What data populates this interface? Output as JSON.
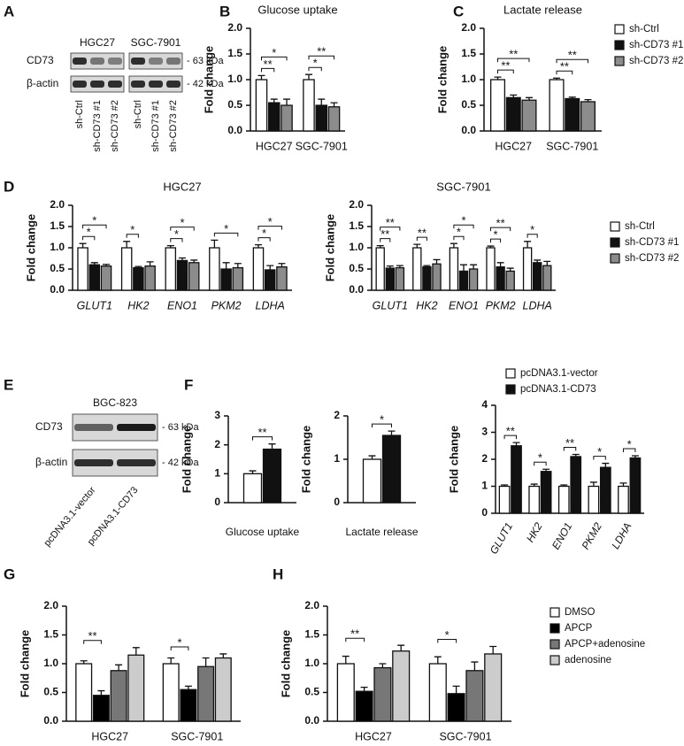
{
  "panel_labels": [
    "A",
    "B",
    "C",
    "D",
    "E",
    "F",
    "G",
    "H"
  ],
  "blots": [
    {
      "cell_lines": [
        "HGC27",
        "SGC-7901"
      ],
      "rows": [
        {
          "label": "CD73",
          "size": "- 63 kDa"
        },
        {
          "label": "β-actin",
          "size": "- 42 kDa"
        }
      ],
      "lanes": [
        "sh-Ctrl",
        "sh-CD73 #1",
        "sh-CD73 #2",
        "sh-Ctrl",
        "sh-CD73 #1",
        "sh-CD73 #2"
      ]
    },
    {
      "cell_lines": [
        "BGC-823"
      ],
      "rows": [
        {
          "label": "CD73",
          "size": "- 63 kDa"
        },
        {
          "label": "β-actin",
          "size": "- 42 kDa"
        }
      ],
      "lanes": [
        "pcDNA3.1-vector",
        "pcDNA3.1-CD73"
      ]
    }
  ],
  "chart_data": [
    {
      "type": "bar",
      "title": "Glucose uptake",
      "y_label": "Fold change",
      "categories": [
        "HGC27",
        "SGC-7901"
      ],
      "series": [
        {
          "color": "#ffffff",
          "values": [
            1.0,
            1.0
          ],
          "errors": [
            0.08,
            0.1
          ]
        },
        {
          "color": "#111111",
          "values": [
            0.55,
            0.5
          ],
          "errors": [
            0.07,
            0.12
          ]
        },
        {
          "color": "#8c8c8c",
          "values": [
            0.5,
            0.47
          ],
          "errors": [
            0.12,
            0.08
          ]
        }
      ],
      "annotations": [
        {
          "label": "**",
          "category": 0,
          "series": [
            0,
            1
          ]
        },
        {
          "label": "*",
          "category": 0,
          "series": [
            0,
            2
          ]
        },
        {
          "label": "*",
          "category": 1,
          "series": [
            0,
            1
          ]
        },
        {
          "label": "**",
          "category": 1,
          "series": [
            0,
            2
          ]
        }
      ],
      "ylim": [
        0,
        2
      ],
      "yticks": [
        {
          "value": 0,
          "label": "0.0"
        },
        0.5,
        {
          "value": 1,
          "label": "1.0"
        },
        1.5,
        {
          "value": 2,
          "label": "2.0"
        }
      ]
    },
    {
      "type": "bar",
      "title": "Lactate release",
      "y_label": "Fold change",
      "categories": [
        "HGC27",
        "SGC-7901"
      ],
      "series": [
        {
          "name": "sh-Ctrl",
          "color": "#ffffff",
          "values": [
            1.0,
            1.0
          ],
          "errors": [
            0.05,
            0.03
          ]
        },
        {
          "name": "sh-CD73 #1",
          "color": "#111111",
          "values": [
            0.65,
            0.63
          ],
          "errors": [
            0.05,
            0.03
          ]
        },
        {
          "name": "sh-CD73 #2",
          "color": "#8c8c8c",
          "values": [
            0.6,
            0.57
          ],
          "errors": [
            0.05,
            0.04
          ]
        }
      ],
      "annotations": [
        {
          "label": "**",
          "category": 0,
          "series": [
            0,
            1
          ]
        },
        {
          "label": "**",
          "category": 0,
          "series": [
            0,
            2
          ]
        },
        {
          "label": "**",
          "category": 1,
          "series": [
            0,
            1
          ]
        },
        {
          "label": "**",
          "category": 1,
          "series": [
            0,
            2
          ]
        }
      ],
      "legend": "right",
      "ylim": [
        0,
        2
      ],
      "yticks": [
        {
          "value": 0,
          "label": "0.0"
        },
        0.5,
        {
          "value": 1,
          "label": "1.0"
        },
        1.5,
        {
          "value": 2,
          "label": "2.0"
        }
      ]
    },
    {
      "type": "bar",
      "title": "HGC27",
      "y_label": "Fold change",
      "italic_categories": true,
      "categories": [
        "GLUT1",
        "HK2",
        "ENO1",
        "PKM2",
        "LDHA"
      ],
      "series": [
        {
          "color": "#ffffff",
          "values": [
            1.0,
            1.0,
            1.0,
            1.0,
            1.0
          ],
          "errors": [
            0.1,
            0.15,
            0.05,
            0.18,
            0.07
          ]
        },
        {
          "color": "#111111",
          "values": [
            0.6,
            0.53,
            0.7,
            0.5,
            0.48
          ],
          "errors": [
            0.05,
            0.03,
            0.06,
            0.15,
            0.1
          ]
        },
        {
          "color": "#8c8c8c",
          "values": [
            0.57,
            0.57,
            0.65,
            0.53,
            0.55
          ],
          "errors": [
            0.04,
            0.1,
            0.06,
            0.1,
            0.08
          ]
        }
      ],
      "annotations": [
        {
          "label": "*",
          "category": 0,
          "series": [
            0,
            1
          ]
        },
        {
          "label": "*",
          "category": 0,
          "series": [
            0,
            2
          ]
        },
        {
          "label": "*",
          "category": 1,
          "series": [
            0,
            1
          ]
        },
        {
          "label": "*",
          "category": 2,
          "series": [
            0,
            1
          ]
        },
        {
          "label": "*",
          "category": 2,
          "series": [
            0,
            2
          ]
        },
        {
          "label": "*",
          "category": 3,
          "series": [
            0,
            2
          ]
        },
        {
          "label": "*",
          "category": 4,
          "series": [
            0,
            1
          ]
        },
        {
          "label": "*",
          "category": 4,
          "series": [
            0,
            2
          ]
        }
      ],
      "ylim": [
        0,
        2
      ],
      "yticks": [
        {
          "value": 0,
          "label": "0.0"
        },
        0.5,
        {
          "value": 1,
          "label": "1.0"
        },
        1.5,
        {
          "value": 2,
          "label": "2.0"
        }
      ]
    },
    {
      "type": "bar",
      "title": "SGC-7901",
      "y_label": "Fold change",
      "italic_categories": true,
      "categories": [
        "GLUT1",
        "HK2",
        "ENO1",
        "PKM2",
        "LDHA"
      ],
      "series": [
        {
          "name": "sh-Ctrl",
          "color": "#ffffff",
          "values": [
            1.0,
            1.0,
            1.0,
            1.0,
            1.0
          ],
          "errors": [
            0.05,
            0.08,
            0.1,
            0.04,
            0.15
          ]
        },
        {
          "name": "sh-CD73 #1",
          "color": "#111111",
          "values": [
            0.52,
            0.55,
            0.45,
            0.55,
            0.65
          ],
          "errors": [
            0.05,
            0.03,
            0.15,
            0.1,
            0.06
          ]
        },
        {
          "name": "sh-CD73 #2",
          "color": "#8c8c8c",
          "values": [
            0.53,
            0.62,
            0.5,
            0.45,
            0.58
          ],
          "errors": [
            0.05,
            0.1,
            0.1,
            0.07,
            0.1
          ]
        }
      ],
      "annotations": [
        {
          "label": "**",
          "category": 0,
          "series": [
            0,
            1
          ]
        },
        {
          "label": "**",
          "category": 0,
          "series": [
            0,
            2
          ]
        },
        {
          "label": "**",
          "category": 1,
          "series": [
            0,
            1
          ]
        },
        {
          "label": "*",
          "category": 2,
          "series": [
            0,
            1
          ]
        },
        {
          "label": "*",
          "category": 2,
          "series": [
            0,
            2
          ]
        },
        {
          "label": "*",
          "category": 3,
          "series": [
            0,
            1
          ]
        },
        {
          "label": "**",
          "category": 3,
          "series": [
            0,
            2
          ]
        },
        {
          "label": "*",
          "category": 4,
          "series": [
            0,
            1
          ]
        }
      ],
      "legend": "right",
      "ylim": [
        0,
        2
      ],
      "yticks": [
        {
          "value": 0,
          "label": "0.0"
        },
        0.5,
        {
          "value": 1,
          "label": "1.0"
        },
        1.5,
        {
          "value": 2,
          "label": "2.0"
        }
      ]
    },
    {
      "type": "bar",
      "y_label": "Fold change",
      "x_label": "Glucose uptake",
      "categories": [
        null
      ],
      "series": [
        {
          "color": "#ffffff",
          "values": [
            1.0
          ],
          "errors": [
            0.1
          ]
        },
        {
          "color": "#111111",
          "values": [
            1.85
          ],
          "errors": [
            0.18
          ]
        }
      ],
      "annotations": [
        {
          "label": "**",
          "category": 0,
          "series": [
            0,
            1
          ]
        }
      ],
      "ylim": [
        0,
        3
      ],
      "yticks": [
        0,
        1,
        2,
        3
      ]
    },
    {
      "type": "bar",
      "y_label": "Fold change",
      "x_label": "Lactate release",
      "categories": [
        null
      ],
      "series": [
        {
          "color": "#ffffff",
          "values": [
            1.0
          ],
          "errors": [
            0.08
          ]
        },
        {
          "color": "#111111",
          "values": [
            1.55
          ],
          "errors": [
            0.1
          ]
        }
      ],
      "annotations": [
        {
          "label": "*",
          "category": 0,
          "series": [
            0,
            1
          ]
        }
      ],
      "ylim": [
        0,
        2
      ],
      "yticks": [
        0,
        1,
        2
      ]
    },
    {
      "type": "bar",
      "y_label": "Fold change",
      "italic_categories": true,
      "rotate_categories": true,
      "categories": [
        "GLUT1",
        "HK2",
        "ENO1",
        "PKM2",
        "LDHA"
      ],
      "series": [
        {
          "name": "pcDNA3.1-vector",
          "color": "#ffffff",
          "values": [
            1.0,
            1.0,
            1.0,
            1.0,
            1.0
          ],
          "errors": [
            0.05,
            0.08,
            0.05,
            0.15,
            0.12
          ]
        },
        {
          "name": "pcDNA3.1-CD73",
          "color": "#111111",
          "values": [
            2.5,
            1.55,
            2.1,
            1.7,
            2.05
          ],
          "errors": [
            0.12,
            0.08,
            0.08,
            0.15,
            0.08
          ]
        }
      ],
      "annotations": [
        {
          "label": "**",
          "category": 0,
          "series": [
            0,
            1
          ]
        },
        {
          "label": "*",
          "category": 1,
          "series": [
            0,
            1
          ]
        },
        {
          "label": "**",
          "category": 2,
          "series": [
            0,
            1
          ]
        },
        {
          "label": "*",
          "category": 3,
          "series": [
            0,
            1
          ]
        },
        {
          "label": "*",
          "category": 4,
          "series": [
            0,
            1
          ]
        }
      ],
      "legend": "top",
      "ylim": [
        0,
        4
      ],
      "yticks": [
        0,
        1,
        2,
        3,
        4
      ]
    },
    {
      "type": "bar",
      "y_label": "Fold change",
      "categories": [
        "HGC27",
        "SGC-7901"
      ],
      "series": [
        {
          "color": "#ffffff",
          "values": [
            1.0,
            1.0
          ],
          "errors": [
            0.05,
            0.1
          ]
        },
        {
          "color": "#000000",
          "values": [
            0.45,
            0.55
          ],
          "errors": [
            0.08,
            0.06
          ]
        },
        {
          "color": "#777777",
          "values": [
            0.88,
            0.95
          ],
          "errors": [
            0.1,
            0.15
          ]
        },
        {
          "color": "#cccccc",
          "values": [
            1.15,
            1.1
          ],
          "errors": [
            0.13,
            0.07
          ]
        }
      ],
      "annotations": [
        {
          "label": "**",
          "category": 0,
          "series": [
            0,
            1
          ]
        },
        {
          "label": "*",
          "category": 1,
          "series": [
            0,
            1
          ]
        }
      ],
      "ylim": [
        0,
        2
      ],
      "yticks": [
        {
          "value": 0,
          "label": "0.0"
        },
        0.5,
        {
          "value": 1,
          "label": "1.0"
        },
        1.5,
        {
          "value": 2,
          "label": "2.0"
        }
      ]
    },
    {
      "type": "bar",
      "y_label": "Fold change",
      "categories": [
        "HGC27",
        "SGC-7901"
      ],
      "series": [
        {
          "name": "DMSO",
          "color": "#ffffff",
          "values": [
            1.0,
            1.0
          ],
          "errors": [
            0.13,
            0.12
          ]
        },
        {
          "name": "APCP",
          "color": "#000000",
          "values": [
            0.52,
            0.48
          ],
          "errors": [
            0.07,
            0.13
          ]
        },
        {
          "name": "APCP+adenosine",
          "color": "#777777",
          "values": [
            0.93,
            0.88
          ],
          "errors": [
            0.07,
            0.15
          ]
        },
        {
          "name": "adenosine",
          "color": "#cccccc",
          "values": [
            1.22,
            1.17
          ],
          "errors": [
            0.1,
            0.13
          ]
        }
      ],
      "annotations": [
        {
          "label": "**",
          "category": 0,
          "series": [
            0,
            1
          ]
        },
        {
          "label": "*",
          "category": 1,
          "series": [
            0,
            1
          ]
        }
      ],
      "legend": "right",
      "ylim": [
        0,
        2
      ],
      "yticks": [
        {
          "value": 0,
          "label": "0.0"
        },
        0.5,
        {
          "value": 1,
          "label": "1.0"
        },
        1.5,
        {
          "value": 2,
          "label": "2.0"
        }
      ]
    }
  ]
}
